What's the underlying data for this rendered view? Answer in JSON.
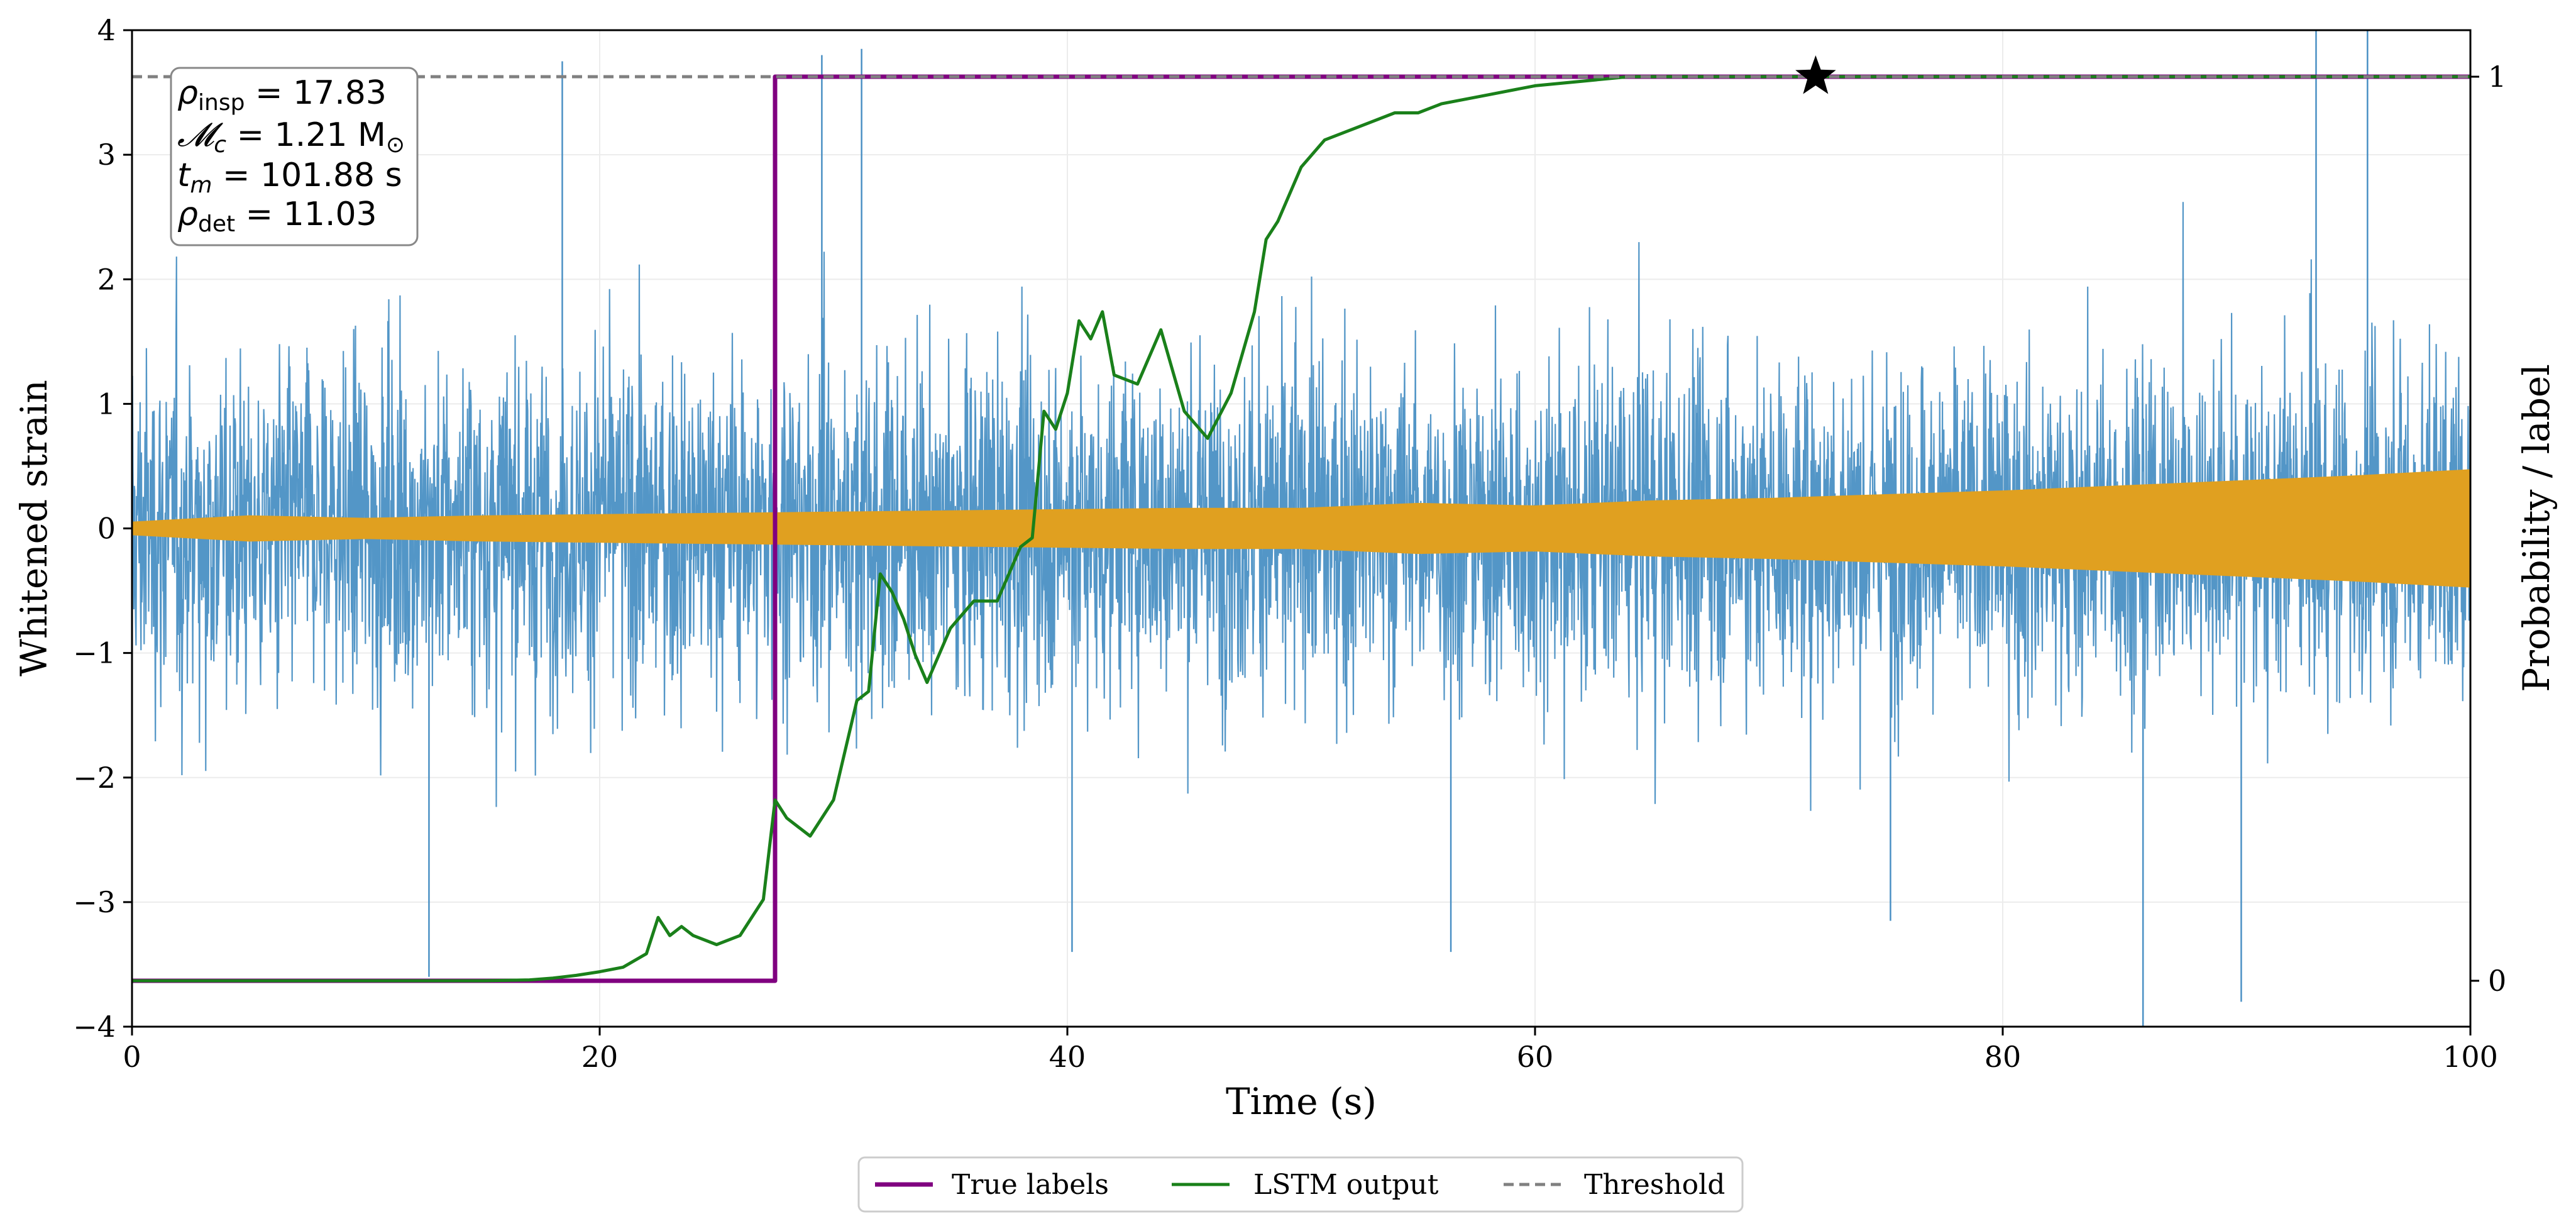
{
  "chart_data": {
    "type": "line",
    "x_axis": {
      "label": "Time (s)",
      "range": [
        0,
        100
      ],
      "ticks": [
        0,
        20,
        40,
        60,
        80,
        100
      ],
      "tick_labels": [
        "0",
        "20",
        "40",
        "60",
        "80",
        "100"
      ]
    },
    "y_axis_left": {
      "label": "Whitened strain",
      "range": [
        -4,
        4
      ],
      "ticks": [
        -4,
        -3,
        -2,
        -1,
        0,
        1,
        2,
        3,
        4
      ],
      "tick_labels": [
        "−4",
        "−3",
        "−2",
        "−1",
        "0",
        "1",
        "2",
        "3",
        "4"
      ]
    },
    "y_axis_right": {
      "label": "Probability / label",
      "ticks": [
        0,
        1
      ],
      "tick_labels": [
        "0",
        "1"
      ]
    },
    "grid": true,
    "annotation": {
      "lines": [
        {
          "symbol": "ρ",
          "sub": "insp",
          "rest": " = 17.83"
        },
        {
          "symbol": "𝓜",
          "sub": "c",
          "rest": " = 1.21 M",
          "tail_sub": "⊙"
        },
        {
          "symbol": "t",
          "sub": "m",
          "rest": " = 101.88 s"
        },
        {
          "symbol": "ρ",
          "sub": "det",
          "rest": " = 11.03"
        }
      ]
    },
    "series": [
      {
        "name": "Whitened strain data",
        "axis": "left",
        "color": "#4a90c4",
        "kind": "noise",
        "x_range": [
          0,
          100
        ],
        "amplitude_sigma": 1.0,
        "extreme_spikes": [
          [
            12.7,
            -3.6
          ],
          [
            18.4,
            3.75
          ],
          [
            29.5,
            3.8
          ],
          [
            31.2,
            3.85
          ],
          [
            40.2,
            -3.4
          ],
          [
            56.4,
            -3.4
          ],
          [
            75.2,
            -3.15
          ],
          [
            86.0,
            -4.0
          ],
          [
            90.2,
            -3.8
          ],
          [
            93.4,
            4.0
          ],
          [
            95.6,
            4.0
          ]
        ]
      },
      {
        "name": "Injected signal",
        "axis": "left",
        "color": "#e0a020",
        "kind": "envelope",
        "x": [
          0,
          5,
          10,
          15,
          20,
          25,
          30,
          35,
          40,
          45,
          50,
          55,
          60,
          65,
          70,
          75,
          80,
          85,
          90,
          95,
          100
        ],
        "values": [
          0.05,
          0.1,
          0.08,
          0.1,
          0.11,
          0.12,
          0.13,
          0.14,
          0.15,
          0.16,
          0.16,
          0.2,
          0.18,
          0.22,
          0.24,
          0.27,
          0.3,
          0.34,
          0.38,
          0.42,
          0.47
        ]
      },
      {
        "name": "True labels",
        "axis": "right",
        "color": "#800080",
        "x": [
          0,
          27.5,
          27.5,
          100
        ],
        "values": [
          0,
          0,
          1,
          1
        ]
      },
      {
        "name": "LSTM output",
        "axis": "right",
        "color": "#1a801a",
        "x": [
          0,
          15,
          17,
          18,
          19,
          20,
          21,
          22,
          22.5,
          23,
          23.5,
          24,
          25,
          26,
          27,
          27.5,
          28,
          29,
          30,
          31,
          31.5,
          32,
          32.5,
          33,
          33.5,
          34,
          35,
          36,
          37,
          38,
          38.5,
          39,
          39.5,
          40,
          40.5,
          41,
          41.5,
          42,
          43,
          44,
          45,
          46,
          47,
          48,
          48.5,
          49,
          50,
          51,
          52,
          53,
          54,
          55,
          56,
          58,
          60,
          62,
          64,
          100
        ],
        "values": [
          0.0,
          0.0,
          0.001,
          0.003,
          0.006,
          0.01,
          0.015,
          0.03,
          0.07,
          0.05,
          0.06,
          0.05,
          0.04,
          0.05,
          0.09,
          0.2,
          0.18,
          0.16,
          0.2,
          0.31,
          0.32,
          0.45,
          0.43,
          0.4,
          0.36,
          0.33,
          0.39,
          0.42,
          0.42,
          0.48,
          0.49,
          0.63,
          0.61,
          0.65,
          0.73,
          0.71,
          0.74,
          0.67,
          0.66,
          0.72,
          0.63,
          0.6,
          0.65,
          0.74,
          0.82,
          0.84,
          0.9,
          0.93,
          0.94,
          0.95,
          0.96,
          0.96,
          0.97,
          0.98,
          0.99,
          0.995,
          1.0,
          1.0
        ]
      },
      {
        "name": "Threshold",
        "axis": "right",
        "color": "#808080",
        "dashed": true,
        "value": 1.0
      }
    ],
    "markers": [
      {
        "name": "detection star",
        "symbol": "★",
        "x": 72,
        "axis": "right",
        "y": 1.0,
        "color": "#000000"
      }
    ],
    "legend": {
      "placement": "bottom-center",
      "entries": [
        "True labels",
        "LSTM output",
        "Threshold"
      ]
    }
  }
}
